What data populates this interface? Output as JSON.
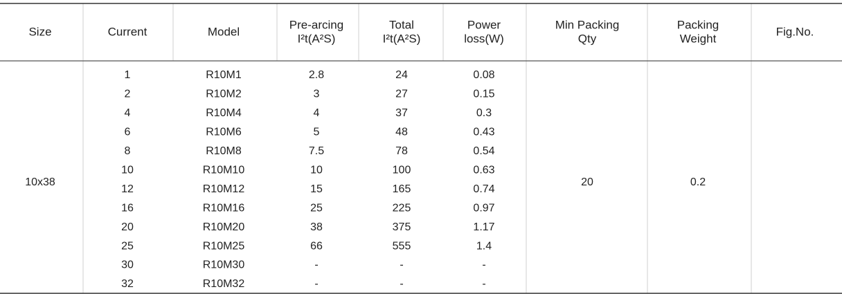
{
  "table": {
    "headers": [
      [
        "Size"
      ],
      [
        "Current"
      ],
      [
        "Model"
      ],
      [
        "Pre-arcing",
        "I²t(A²S)"
      ],
      [
        "Total",
        "I²t(A²S)"
      ],
      [
        "Power",
        "loss(W)"
      ],
      [
        "Min Packing",
        "Qty"
      ],
      [
        "Packing",
        "Weight"
      ],
      [
        "Fig.No."
      ]
    ],
    "size": "10x38",
    "min_packing_qty": "20",
    "packing_weight": "0.2",
    "rows": [
      [
        "1",
        "R10M1",
        "2.8",
        "24",
        "0.08"
      ],
      [
        "2",
        "R10M2",
        "3",
        "27",
        "0.15"
      ],
      [
        "4",
        "R10M4",
        "4",
        "37",
        "0.3"
      ],
      [
        "6",
        "R10M6",
        "5",
        "48",
        "0.43"
      ],
      [
        "8",
        "R10M8",
        "7.5",
        "78",
        "0.54"
      ],
      [
        "10",
        "R10M10",
        "10",
        "100",
        "0.63"
      ],
      [
        "12",
        "R10M12",
        "15",
        "165",
        "0.74"
      ],
      [
        "16",
        "R10M16",
        "25",
        "225",
        "0.97"
      ],
      [
        "20",
        "R10M20",
        "38",
        "375",
        "1.17"
      ],
      [
        "25",
        "R10M25",
        "66",
        "555",
        "1.4"
      ],
      [
        "30",
        "R10M30",
        "-",
        "-",
        "-"
      ],
      [
        "32",
        "R10M32",
        "-",
        "-",
        "-"
      ]
    ]
  }
}
